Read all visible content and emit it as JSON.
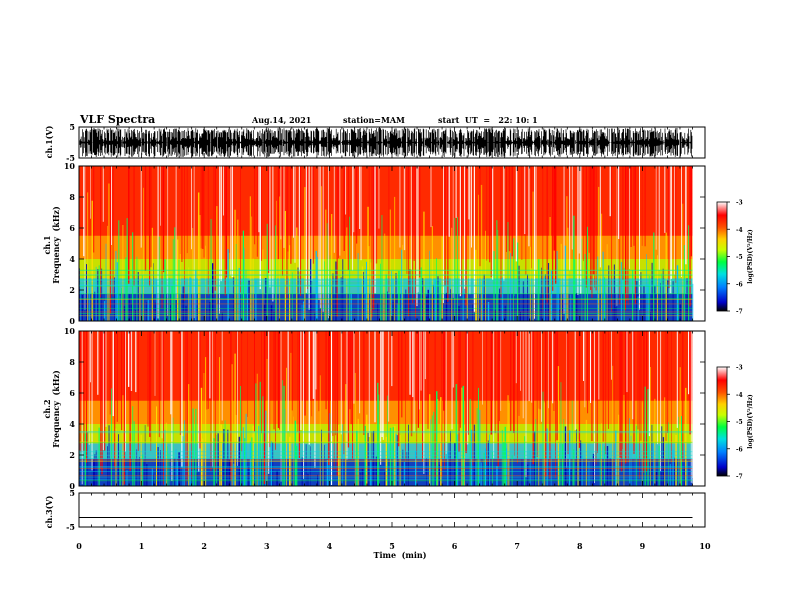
{
  "header": {
    "title": "VLF Spectra",
    "date": "Aug.14, 2021",
    "station": "station=MAM",
    "start": "start  UT  =   22: 10: 1"
  },
  "chart_data": [
    {
      "type": "line",
      "panel": "ch1-waveform",
      "ylabel": "ch.1(V)",
      "ylim": [
        -5,
        5
      ],
      "yticks": [
        "5",
        "-5"
      ],
      "description_values": "dense impulsive waveform spanning the full -5..5 V range"
    },
    {
      "type": "heatmap",
      "panel": "ch1-spectrogram",
      "ylabel_line1": "ch.1",
      "ylabel_line2": "Frequency  (kHz)",
      "ylim": [
        0,
        10
      ],
      "yticks": [
        "0",
        "2",
        "4",
        "6",
        "8",
        "10"
      ],
      "colorbar": {
        "label": "log(PSD)(V²/Hz)",
        "range": [
          -7,
          -3
        ],
        "ticks": [
          "-3",
          "-4",
          "-5",
          "-6",
          "-7"
        ],
        "colors": [
          "#000000",
          "#0000c8",
          "#0080ff",
          "#00e0e0",
          "#00ff40",
          "#c8ff00",
          "#ffd000",
          "#ff5000",
          "#ff0000",
          "#ffffff"
        ]
      }
    },
    {
      "type": "heatmap",
      "panel": "ch2-spectrogram",
      "ylabel_line1": "ch.2",
      "ylabel_line2": "Frequency  (kHz)",
      "ylim": [
        0,
        10
      ],
      "yticks": [
        "0",
        "2",
        "4",
        "6",
        "8",
        "10"
      ],
      "colorbar": {
        "label": "log(PSD)(V²/Hz)",
        "range": [
          -7,
          -3
        ],
        "ticks": [
          "-3",
          "-4",
          "-5",
          "-6",
          "-7"
        ]
      }
    },
    {
      "type": "line",
      "panel": "ch3-waveform",
      "ylabel": "ch.3(V)",
      "ylim": [
        -5,
        5
      ],
      "yticks": [
        "5",
        "-5"
      ],
      "x": [
        0,
        9.8
      ],
      "y": [
        -2.2,
        -2.2
      ]
    }
  ],
  "x_axis": {
    "label": "Time  (min)",
    "range": [
      0,
      10
    ],
    "ticks": [
      "0",
      "1",
      "2",
      "3",
      "4",
      "5",
      "6",
      "7",
      "8",
      "9",
      "10"
    ],
    "data_end": 9.8
  }
}
